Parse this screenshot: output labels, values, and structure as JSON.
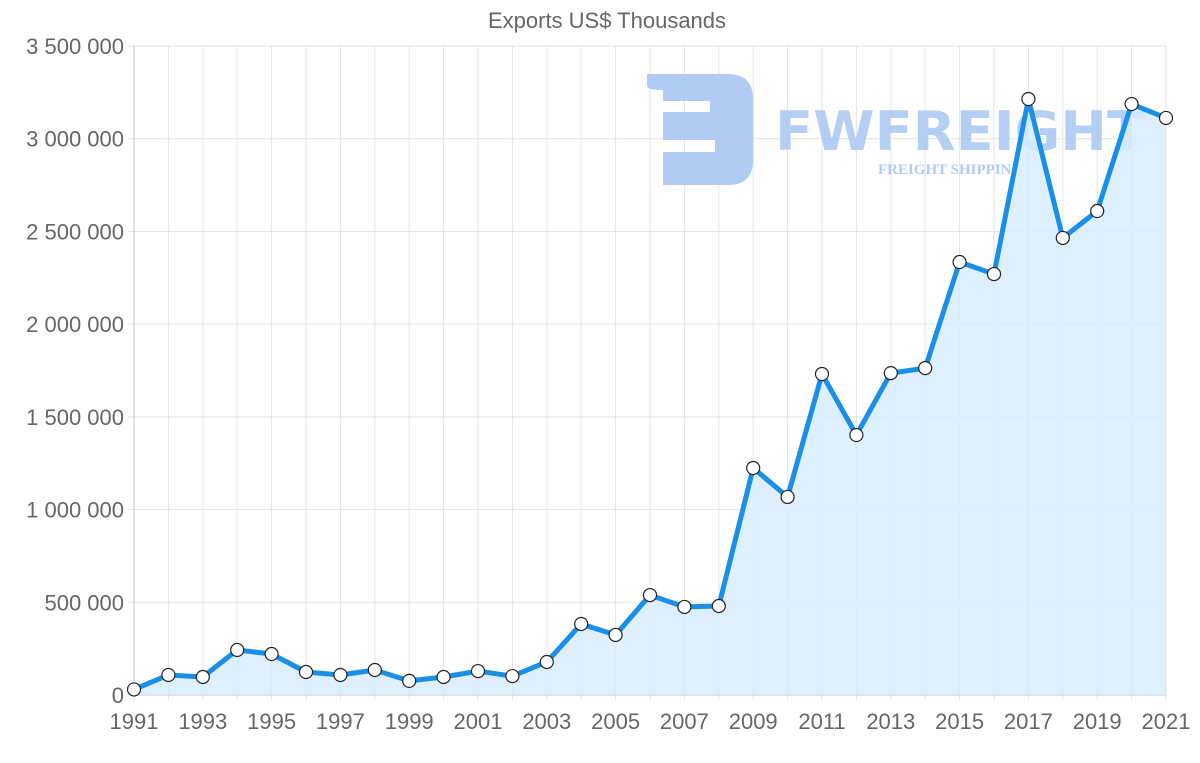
{
  "chart_data": {
    "type": "line",
    "title": "Exports US$ Thousands",
    "xlabel": "",
    "ylabel": "",
    "ylim": [
      0,
      3500000
    ],
    "grid": true,
    "legend": "none",
    "fill": true,
    "colors": {
      "line": "#1a8fe8",
      "fill": "#d8ecfd",
      "grid": "#e3e3e3",
      "axis_text": "#666666",
      "marker_fill": "#ffffff",
      "marker_stroke": "#222222"
    },
    "y_ticks": [
      {
        "value": 0,
        "label": "0"
      },
      {
        "value": 500000,
        "label": "500 000"
      },
      {
        "value": 1000000,
        "label": "1 000 000"
      },
      {
        "value": 1500000,
        "label": "1 500 000"
      },
      {
        "value": 2000000,
        "label": "2 000 000"
      },
      {
        "value": 2500000,
        "label": "2 500 000"
      },
      {
        "value": 3000000,
        "label": "3 000 000"
      },
      {
        "value": 3500000,
        "label": "3 500 000"
      }
    ],
    "x_tick_labels": [
      "1991",
      "1993",
      "1995",
      "1997",
      "1999",
      "2001",
      "2003",
      "2005",
      "2007",
      "2009",
      "2011",
      "2013",
      "2015",
      "2017",
      "2019",
      "2021"
    ],
    "x": [
      1991,
      1992,
      1993,
      1994,
      1995,
      1996,
      1997,
      1998,
      1999,
      2000,
      2001,
      2002,
      2003,
      2004,
      2005,
      2006,
      2007,
      2008,
      2009,
      2010,
      2011,
      2012,
      2013,
      2014,
      2015,
      2016,
      2017,
      2018,
      2019,
      2020,
      2021
    ],
    "series": [
      {
        "name": "Exports US$ Thousands",
        "values": [
          30000,
          108000,
          97000,
          243000,
          221000,
          124000,
          108000,
          135000,
          76000,
          97000,
          129000,
          102000,
          178000,
          383000,
          324000,
          539000,
          475000,
          480000,
          1224000,
          1068000,
          1731000,
          1402000,
          1736000,
          1763000,
          2335000,
          2270000,
          3214000,
          2465000,
          2610000,
          3187000,
          3112000
        ]
      }
    ]
  },
  "watermark": {
    "brand": "FWFREIGHT",
    "tagline": "FREIGHT SHIPPING",
    "color": "#a9c6f2"
  }
}
